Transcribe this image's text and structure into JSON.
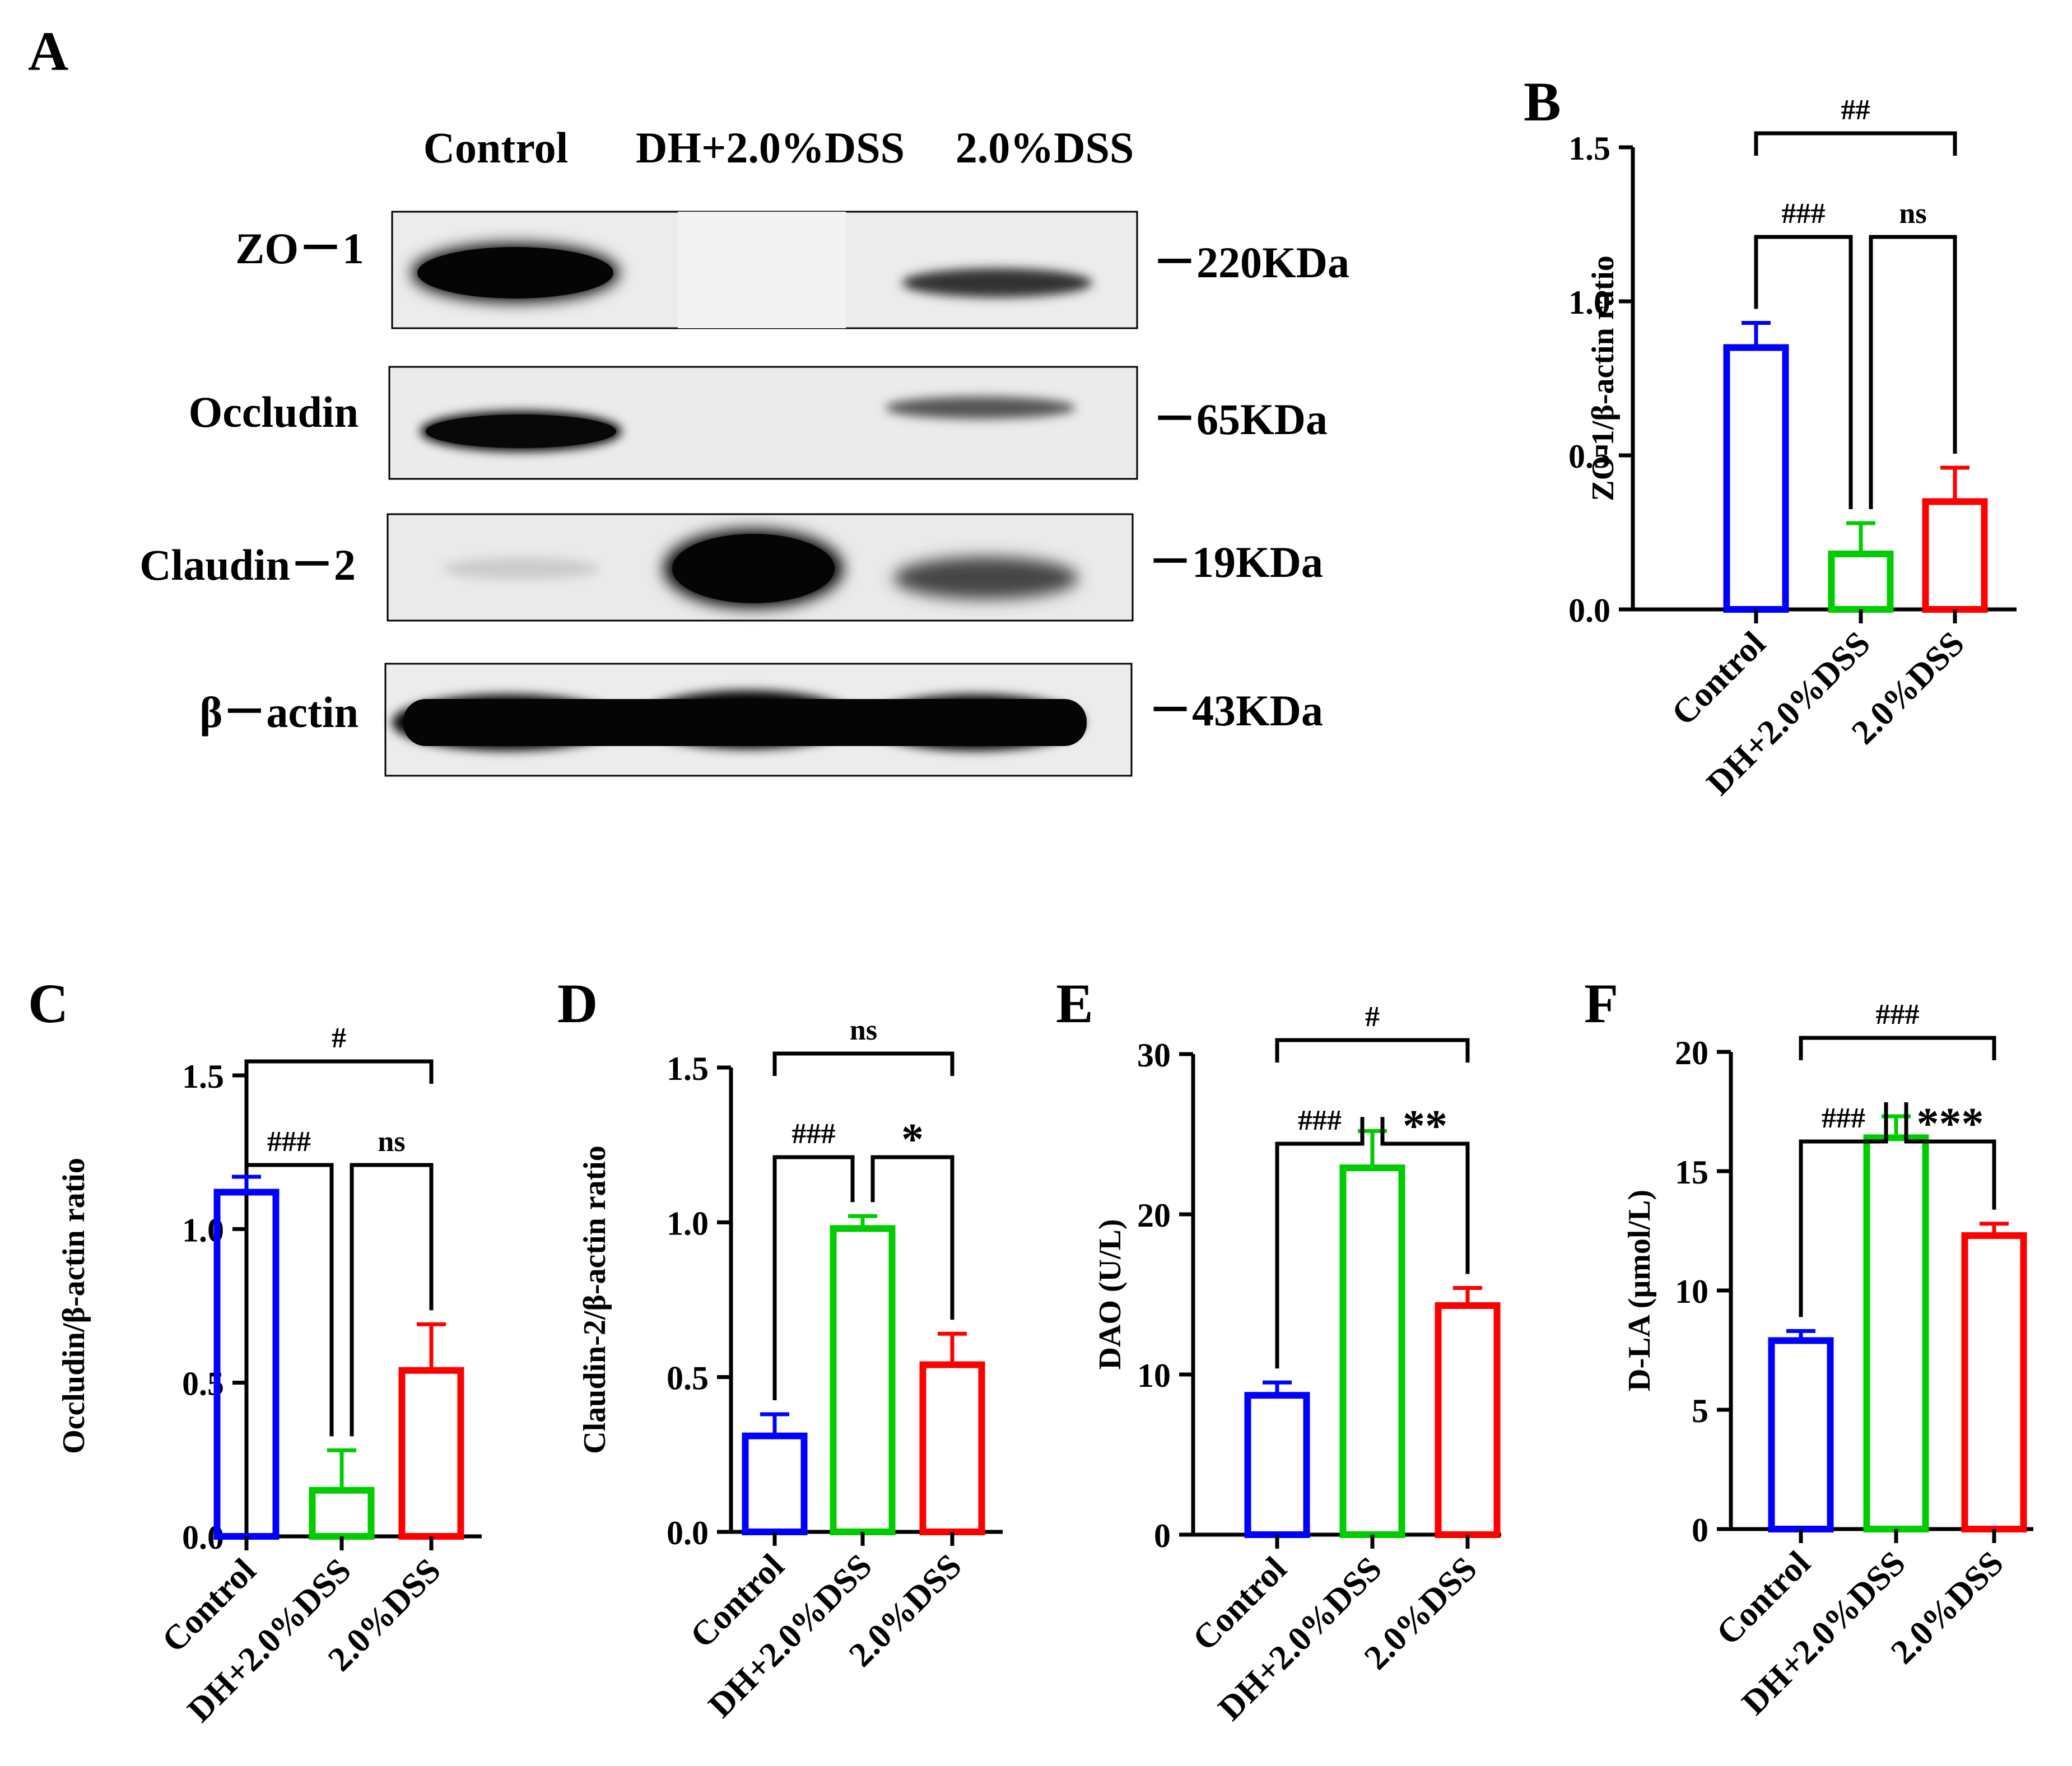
{
  "colors": {
    "blue": "#0000ff",
    "green": "#00cc00",
    "red": "#ff0000",
    "black": "#000000"
  },
  "blot": {
    "panel_label": "A",
    "lanes": [
      "Control",
      "DH+2.0%DSS",
      "2.0%DSS"
    ],
    "proteins": [
      {
        "name": "ZO－1",
        "size": "－220KDa"
      },
      {
        "name": "Occludin",
        "size": "－65KDa"
      },
      {
        "name": "Claudin－2",
        "size": "－19KDa"
      },
      {
        "name": "β－actin",
        "size": "－43KDa"
      }
    ]
  },
  "chart_data": [
    {
      "panel": "B",
      "type": "bar",
      "categories": [
        "Control",
        "DH+2.0%DSS",
        "2.0%DSS"
      ],
      "values": [
        0.85,
        0.18,
        0.35
      ],
      "errors": [
        0.08,
        0.1,
        0.11
      ],
      "ylabel": "ZO-1/β-actin ratio",
      "ylim": [
        0,
        1.5
      ],
      "yticks": [
        "0.0",
        "0.5",
        "1.0",
        "1.5"
      ],
      "brackets": [
        {
          "from": 0,
          "to": 2,
          "label": "##"
        },
        {
          "from": 0,
          "to": 1,
          "label": "###"
        },
        {
          "from": 1,
          "to": 2,
          "label": "ns"
        }
      ]
    },
    {
      "panel": "C",
      "type": "bar",
      "categories": [
        "Control",
        "DH+2.0%DSS",
        "2.0%DSS"
      ],
      "values": [
        1.12,
        0.15,
        0.54
      ],
      "errors": [
        0.05,
        0.13,
        0.15
      ],
      "ylabel": "Occludin/β-actin ratio",
      "ylim": [
        0,
        1.5
      ],
      "yticks": [
        "0.0",
        "0.5",
        "1.0",
        "1.5"
      ],
      "brackets": [
        {
          "from": 0,
          "to": 2,
          "label": "#"
        },
        {
          "from": 0,
          "to": 1,
          "label": "###"
        },
        {
          "from": 1,
          "to": 2,
          "label": "ns"
        }
      ]
    },
    {
      "panel": "D",
      "type": "bar",
      "categories": [
        "Control",
        "DH+2.0%DSS",
        "2.0%DSS"
      ],
      "values": [
        0.31,
        0.98,
        0.54
      ],
      "errors": [
        0.07,
        0.04,
        0.1
      ],
      "ylabel": "Claudin-2/β-actin ratio",
      "ylim": [
        0,
        1.5
      ],
      "yticks": [
        "0.0",
        "0.5",
        "1.0",
        "1.5"
      ],
      "brackets": [
        {
          "from": 0,
          "to": 2,
          "label": "ns"
        },
        {
          "from": 0,
          "to": 1,
          "label": "###"
        },
        {
          "from": 1,
          "to": 2,
          "label": "*"
        }
      ]
    },
    {
      "panel": "E",
      "type": "bar",
      "categories": [
        "Control",
        "DH+2.0%DSS",
        "2.0%DSS"
      ],
      "values": [
        8.7,
        22.9,
        14.3
      ],
      "errors": [
        0.8,
        2.3,
        1.1
      ],
      "ylabel": "DAO (U/L)",
      "ylim": [
        0,
        30
      ],
      "yticks": [
        "0",
        "10",
        "20",
        "30"
      ],
      "brackets": [
        {
          "from": 0,
          "to": 2,
          "label": "#"
        },
        {
          "from": 0,
          "to": 1,
          "label": "###"
        },
        {
          "from": 1,
          "to": 2,
          "label": "**"
        }
      ]
    },
    {
      "panel": "F",
      "type": "bar",
      "categories": [
        "Control",
        "DH+2.0%DSS",
        "2.0%DSS"
      ],
      "values": [
        7.9,
        16.4,
        12.3
      ],
      "errors": [
        0.4,
        0.9,
        0.5
      ],
      "ylabel": "D-LA (μmol/L)",
      "ylim": [
        0,
        20
      ],
      "yticks": [
        "0",
        "5",
        "10",
        "15",
        "20"
      ],
      "brackets": [
        {
          "from": 0,
          "to": 2,
          "label": "###"
        },
        {
          "from": 0,
          "to": 1,
          "label": "###"
        },
        {
          "from": 1,
          "to": 2,
          "label": "***"
        }
      ]
    }
  ]
}
